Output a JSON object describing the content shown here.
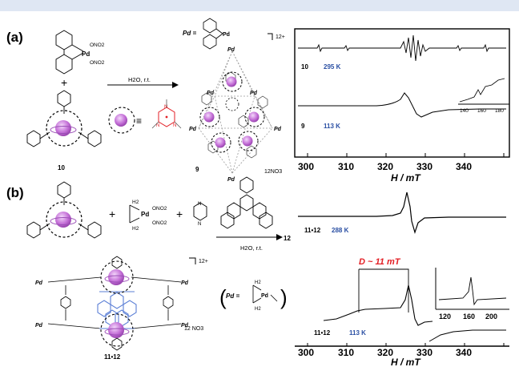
{
  "colors": {
    "top_strip": "#dfe7f3",
    "temp_blue": "#2a4fa3",
    "d_red": "#e31e24",
    "cage_purple": "#b765c9",
    "frame_grey": "#9a9a9a",
    "triphenylene_blue": "#5b7fd6"
  },
  "panel_a": {
    "label": "(a)",
    "precursor": {
      "metal": "Pd",
      "ligand1": "ONO2",
      "ligand2": "ONO2"
    },
    "ligand_label": "10",
    "conditions": "H2O, r.t.",
    "cage_label": "9",
    "charge": "12+",
    "counterion": "12NO3",
    "pd_eq": "Pd =",
    "pd_symbol": "Pd",
    "triazine_N": "N",
    "epr": {
      "top": {
        "sample": "10",
        "temp": "295 K"
      },
      "bottom": {
        "sample": "9",
        "temp": "113 K"
      },
      "inset_ticks": [
        "140",
        "160",
        "180"
      ],
      "x_ticks": [
        "300",
        "310",
        "320",
        "330",
        "340"
      ],
      "x_axis_label": "H / mT"
    }
  },
  "panel_b": {
    "label": "(b)",
    "precursor": {
      "metal": "Pd",
      "ligand1": "ONO2",
      "ligand2": "ONO2",
      "h2": "H2",
      "n": "N"
    },
    "plus": "+",
    "reagent_number": "12",
    "conditions": "H2O, r.t.",
    "complex_label": "11•12",
    "charge": "12+",
    "counterion": "12 NO3",
    "pd_eq": "Pd =",
    "pd_symbol": "Pd",
    "epr": {
      "top": {
        "sample": "11•12",
        "temp": "288 K"
      },
      "bottom": {
        "sample": "11•12",
        "temp": "113 K"
      },
      "d_annotation": "D ~ 11 mT",
      "inset_ticks": [
        "120",
        "160",
        "200"
      ],
      "x_ticks": [
        "300",
        "310",
        "320",
        "330",
        "340"
      ],
      "x_axis_label": "H / mT"
    }
  }
}
